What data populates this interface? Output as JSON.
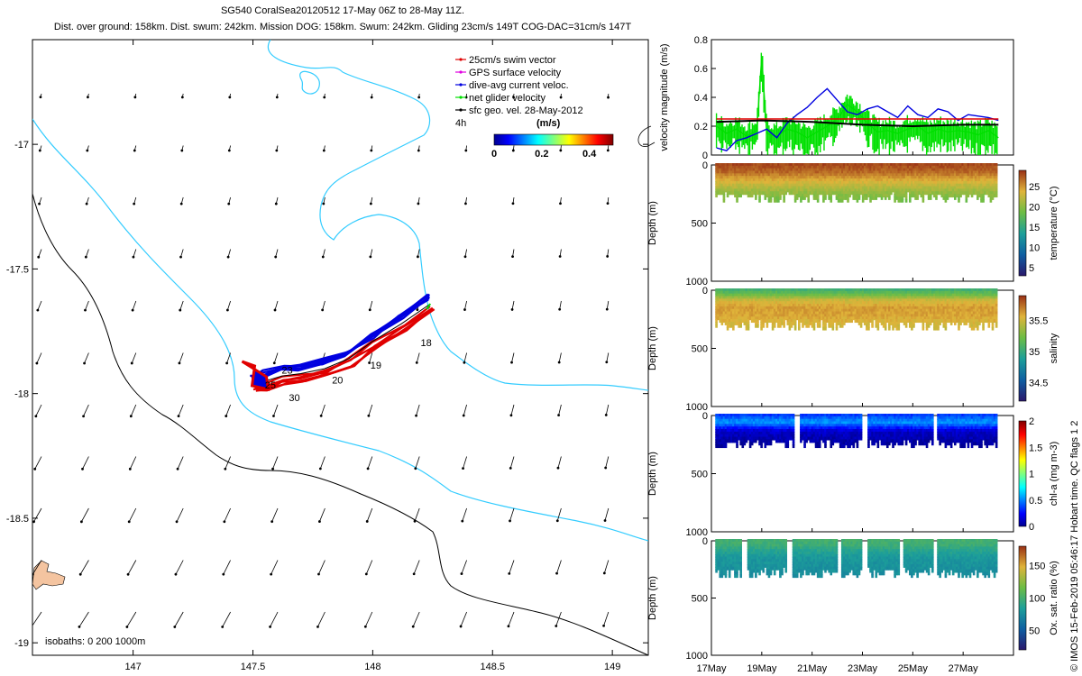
{
  "title": {
    "line1": "SG540 CoralSea20120512 17-May 06Z to 28-May 11Z.",
    "line2": "Dist. over ground: 158km. Dist. swum: 242km. Mission DOG: 158km. Swum: 242km. Gliding 23cm/s 149T COG-DAC=31cm/s 147T"
  },
  "credit": "© IMOS 15-Feb-2019 05:46:17 Hobart time. QC flags 1  2",
  "map": {
    "x_ticks": [
      147,
      147.5,
      148,
      148.5,
      149
    ],
    "x_tick_labels": [
      "147",
      "147.5",
      "148",
      "148.5",
      "149"
    ],
    "y_ticks": [
      -17,
      -17.5,
      -18,
      -18.5,
      -19
    ],
    "y_tick_labels": [
      "-17",
      "-17.5",
      "-18",
      "-18.5",
      "-19"
    ],
    "xlim": [
      146.58,
      149.15
    ],
    "ylim": [
      -19.05,
      -16.58
    ],
    "legend": [
      {
        "label": "25cm/s swim vector",
        "color": "#e00000"
      },
      {
        "label": "GPS surface velocity",
        "color": "#e000e0"
      },
      {
        "label": "dive-avg current veloc.",
        "color": "#0000e0"
      },
      {
        "label": "net glider velocity",
        "color": "#00e000"
      },
      {
        "label": "sfc geo. vel. 28-May-2012",
        "color": "#000000"
      }
    ],
    "legend_note": "4h",
    "colorbar": {
      "label": "(m/s)",
      "ticks": [
        "0",
        "0.2",
        "0.4"
      ],
      "range": [
        0,
        0.5
      ]
    },
    "day_labels": [
      {
        "text": "18",
        "x": 148.2,
        "y": -17.81
      },
      {
        "text": "19",
        "x": 147.99,
        "y": -17.9
      },
      {
        "text": "20",
        "x": 147.83,
        "y": -17.96
      },
      {
        "text": "23",
        "x": 147.62,
        "y": -17.92
      },
      {
        "text": "25",
        "x": 147.55,
        "y": -17.98
      },
      {
        "text": "30",
        "x": 147.65,
        "y": -18.03
      }
    ],
    "isobath_note": "isobaths: 0   200  1000m",
    "isobath_colors": {
      "200m": "#33ccff",
      "1000m": "#000000",
      "land": "#f4c4a0"
    }
  },
  "chart_data": [
    {
      "type": "line",
      "panel": "velocity",
      "ylabel": "velocity magnitude (m/s)",
      "xlim": [
        17,
        29
      ],
      "ylim": [
        0,
        0.8
      ],
      "y_tick_labels": [
        "0",
        "0.2",
        "0.4",
        "0.6",
        "0.8"
      ],
      "series": [
        {
          "color": "#00e000",
          "x": [
            17.2,
            17.6,
            18,
            18.4,
            18.8,
            19.0,
            19.2,
            19.6,
            20,
            20.4,
            20.8,
            21.2,
            21.6,
            22,
            22.4,
            22.8,
            23.2,
            23.6,
            24,
            24.4,
            24.8,
            25.2,
            25.6,
            26,
            26.4,
            26.8,
            27.2,
            27.6,
            28,
            28.4
          ],
          "values": [
            0.2,
            0.15,
            0.18,
            0.13,
            0.17,
            0.68,
            0.15,
            0.13,
            0.18,
            0.16,
            0.12,
            0.16,
            0.2,
            0.25,
            0.35,
            0.3,
            0.22,
            0.16,
            0.17,
            0.15,
            0.18,
            0.2,
            0.15,
            0.18,
            0.16,
            0.17,
            0.16,
            0.14,
            0.17,
            0.12
          ]
        },
        {
          "color": "#0000e0",
          "x": [
            17.2,
            17.6,
            18,
            18.4,
            18.8,
            19.2,
            19.6,
            20,
            20.4,
            20.8,
            21.2,
            21.6,
            22,
            22.4,
            22.8,
            23.2,
            23.6,
            24,
            24.4,
            24.8,
            25.2,
            25.6,
            26,
            26.4,
            26.8,
            27.2,
            27.6,
            28,
            28.4
          ],
          "values": [
            0.05,
            0.03,
            0.1,
            0.12,
            0.15,
            0.18,
            0.12,
            0.22,
            0.28,
            0.33,
            0.4,
            0.46,
            0.38,
            0.3,
            0.28,
            0.32,
            0.34,
            0.3,
            0.26,
            0.34,
            0.28,
            0.26,
            0.32,
            0.3,
            0.24,
            0.28,
            0.27,
            0.26,
            0.24
          ]
        },
        {
          "color": "#e00000",
          "x": [
            17.2,
            28.4
          ],
          "values": [
            0.25,
            0.25
          ]
        },
        {
          "color": "#000000",
          "x": [
            17.2,
            19,
            21,
            23,
            25,
            27,
            28.4
          ],
          "values": [
            0.23,
            0.24,
            0.23,
            0.21,
            0.2,
            0.21,
            0.21
          ]
        }
      ]
    },
    {
      "type": "scatter",
      "panel": "temperature",
      "ylabel": "Depth (m)",
      "colorbar_label": "temperature (°C)",
      "colorbar_ticks": [
        "5",
        "10",
        "15",
        "20",
        "25"
      ],
      "color_range": [
        3,
        29
      ],
      "ylim": [
        1000,
        0
      ],
      "y_tick_labels": [
        "0",
        "500",
        "1000"
      ],
      "max_depth": 300,
      "profile": [
        [
          0,
          28
        ],
        [
          60,
          27
        ],
        [
          110,
          25
        ],
        [
          160,
          23
        ],
        [
          220,
          21
        ],
        [
          300,
          19
        ]
      ]
    },
    {
      "type": "scatter",
      "panel": "salinity",
      "ylabel": "Depth (m)",
      "colorbar_label": "salinity",
      "colorbar_ticks": [
        "34.5",
        "35",
        "35.5"
      ],
      "color_range": [
        34.2,
        35.9
      ],
      "ylim": [
        1000,
        0
      ],
      "y_tick_labels": [
        "0",
        "500",
        "1000"
      ],
      "max_depth": 320,
      "profile": [
        [
          0,
          35.05
        ],
        [
          40,
          35.2
        ],
        [
          90,
          35.5
        ],
        [
          150,
          35.62
        ],
        [
          220,
          35.6
        ],
        [
          320,
          35.5
        ]
      ]
    },
    {
      "type": "scatter",
      "panel": "chl-a",
      "ylabel": "Depth (m)",
      "colorbar_label": "chl-a (mg m-3)",
      "colorbar_ticks": [
        "0",
        "0.5",
        "1",
        "1.5",
        "2"
      ],
      "color_range": [
        0,
        2
      ],
      "ylim": [
        1000,
        0
      ],
      "y_tick_labels": [
        "0",
        "500",
        "1000"
      ],
      "max_depth": 260,
      "gaps": [
        [
          20.3,
          20.5
        ],
        [
          23.0,
          23.2
        ],
        [
          25.8,
          26.0
        ]
      ],
      "profile": [
        [
          0,
          0.35
        ],
        [
          30,
          0.45
        ],
        [
          60,
          0.55
        ],
        [
          90,
          0.4
        ],
        [
          140,
          0.12
        ],
        [
          260,
          0.02
        ]
      ]
    },
    {
      "type": "scatter",
      "panel": "oxygen",
      "ylabel": "Depth (m)",
      "colorbar_label": "Ox. sat. ratio (%)",
      "colorbar_ticks": [
        "50",
        "100",
        "150"
      ],
      "color_range": [
        20,
        180
      ],
      "ylim": [
        1000,
        0
      ],
      "y_tick_labels": [
        "0",
        "500",
        "1000"
      ],
      "max_depth": 300,
      "gaps": [
        [
          18.2,
          18.4
        ],
        [
          20.0,
          20.2
        ],
        [
          22.0,
          22.2
        ],
        [
          23.0,
          23.2
        ],
        [
          24.5,
          24.6
        ],
        [
          25.8,
          26.0
        ]
      ],
      "profile": [
        [
          0,
          100
        ],
        [
          40,
          98
        ],
        [
          80,
          90
        ],
        [
          150,
          80
        ],
        [
          300,
          75
        ]
      ]
    }
  ],
  "time_axis": {
    "tick_labels": [
      "17May",
      "19May",
      "21May",
      "23May",
      "25May",
      "27May"
    ],
    "tick_values": [
      17,
      19,
      21,
      23,
      25,
      27
    ]
  }
}
